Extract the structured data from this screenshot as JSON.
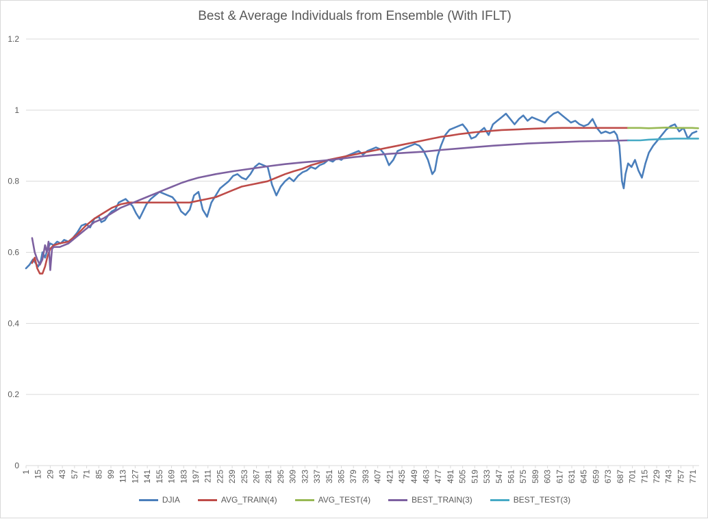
{
  "chart_data": {
    "type": "line",
    "title": "Best & Average Individuals from Ensemble (With IFLT)",
    "xlabel": "",
    "ylabel": "",
    "ylim": [
      0,
      1.2
    ],
    "yticks": [
      "0",
      "0.2",
      "0.4",
      "0.6",
      "0.8",
      "1",
      "1.2"
    ],
    "xlim": [
      1,
      778
    ],
    "xticks": [
      1,
      15,
      29,
      43,
      57,
      71,
      85,
      99,
      113,
      127,
      141,
      155,
      169,
      183,
      197,
      211,
      225,
      239,
      253,
      267,
      281,
      295,
      309,
      323,
      337,
      351,
      365,
      379,
      393,
      407,
      421,
      435,
      449,
      463,
      477,
      491,
      505,
      519,
      533,
      547,
      561,
      575,
      589,
      603,
      617,
      631,
      645,
      659,
      673,
      687,
      701,
      715,
      729,
      743,
      757,
      771
    ],
    "grid": "horizontal",
    "legend_position": "bottom",
    "series": [
      {
        "name": "DJIA",
        "color": "#4a7ebb",
        "points": [
          [
            1,
            0.555
          ],
          [
            5,
            0.565
          ],
          [
            9,
            0.58
          ],
          [
            12,
            0.57
          ],
          [
            15,
            0.56
          ],
          [
            18,
            0.575
          ],
          [
            20,
            0.6
          ],
          [
            23,
            0.585
          ],
          [
            26,
            0.61
          ],
          [
            29,
            0.625
          ],
          [
            33,
            0.62
          ],
          [
            37,
            0.63
          ],
          [
            41,
            0.625
          ],
          [
            45,
            0.635
          ],
          [
            50,
            0.63
          ],
          [
            55,
            0.64
          ],
          [
            60,
            0.655
          ],
          [
            65,
            0.675
          ],
          [
            70,
            0.68
          ],
          [
            75,
            0.67
          ],
          [
            80,
            0.695
          ],
          [
            85,
            0.7
          ],
          [
            88,
            0.685
          ],
          [
            92,
            0.69
          ],
          [
            96,
            0.705
          ],
          [
            100,
            0.715
          ],
          [
            104,
            0.72
          ],
          [
            108,
            0.74
          ],
          [
            112,
            0.745
          ],
          [
            116,
            0.75
          ],
          [
            120,
            0.74
          ],
          [
            124,
            0.73
          ],
          [
            128,
            0.71
          ],
          [
            132,
            0.695
          ],
          [
            136,
            0.715
          ],
          [
            140,
            0.735
          ],
          [
            145,
            0.75
          ],
          [
            150,
            0.76
          ],
          [
            155,
            0.77
          ],
          [
            160,
            0.765
          ],
          [
            165,
            0.76
          ],
          [
            170,
            0.755
          ],
          [
            175,
            0.74
          ],
          [
            180,
            0.715
          ],
          [
            185,
            0.705
          ],
          [
            190,
            0.72
          ],
          [
            195,
            0.76
          ],
          [
            200,
            0.77
          ],
          [
            205,
            0.72
          ],
          [
            210,
            0.7
          ],
          [
            215,
            0.74
          ],
          [
            220,
            0.76
          ],
          [
            225,
            0.78
          ],
          [
            230,
            0.79
          ],
          [
            235,
            0.8
          ],
          [
            240,
            0.815
          ],
          [
            245,
            0.82
          ],
          [
            250,
            0.81
          ],
          [
            255,
            0.805
          ],
          [
            260,
            0.82
          ],
          [
            265,
            0.84
          ],
          [
            270,
            0.85
          ],
          [
            275,
            0.845
          ],
          [
            280,
            0.84
          ],
          [
            285,
            0.79
          ],
          [
            290,
            0.76
          ],
          [
            295,
            0.785
          ],
          [
            300,
            0.8
          ],
          [
            305,
            0.81
          ],
          [
            310,
            0.8
          ],
          [
            315,
            0.815
          ],
          [
            320,
            0.825
          ],
          [
            325,
            0.83
          ],
          [
            330,
            0.84
          ],
          [
            335,
            0.835
          ],
          [
            340,
            0.845
          ],
          [
            345,
            0.85
          ],
          [
            350,
            0.86
          ],
          [
            355,
            0.855
          ],
          [
            360,
            0.865
          ],
          [
            365,
            0.86
          ],
          [
            370,
            0.87
          ],
          [
            375,
            0.875
          ],
          [
            380,
            0.88
          ],
          [
            385,
            0.885
          ],
          [
            390,
            0.875
          ],
          [
            395,
            0.885
          ],
          [
            400,
            0.89
          ],
          [
            405,
            0.895
          ],
          [
            410,
            0.89
          ],
          [
            415,
            0.875
          ],
          [
            420,
            0.845
          ],
          [
            425,
            0.86
          ],
          [
            430,
            0.885
          ],
          [
            435,
            0.89
          ],
          [
            440,
            0.895
          ],
          [
            445,
            0.9
          ],
          [
            450,
            0.905
          ],
          [
            455,
            0.9
          ],
          [
            460,
            0.885
          ],
          [
            465,
            0.86
          ],
          [
            470,
            0.82
          ],
          [
            473,
            0.83
          ],
          [
            476,
            0.87
          ],
          [
            480,
            0.9
          ],
          [
            485,
            0.93
          ],
          [
            490,
            0.945
          ],
          [
            495,
            0.95
          ],
          [
            500,
            0.955
          ],
          [
            505,
            0.96
          ],
          [
            510,
            0.945
          ],
          [
            515,
            0.92
          ],
          [
            520,
            0.925
          ],
          [
            525,
            0.94
          ],
          [
            530,
            0.95
          ],
          [
            535,
            0.93
          ],
          [
            540,
            0.96
          ],
          [
            545,
            0.97
          ],
          [
            550,
            0.98
          ],
          [
            555,
            0.99
          ],
          [
            560,
            0.975
          ],
          [
            565,
            0.96
          ],
          [
            570,
            0.975
          ],
          [
            575,
            0.985
          ],
          [
            580,
            0.97
          ],
          [
            585,
            0.98
          ],
          [
            590,
            0.975
          ],
          [
            595,
            0.97
          ],
          [
            600,
            0.965
          ],
          [
            605,
            0.98
          ],
          [
            610,
            0.99
          ],
          [
            615,
            0.995
          ],
          [
            620,
            0.985
          ],
          [
            625,
            0.975
          ],
          [
            630,
            0.965
          ],
          [
            635,
            0.97
          ],
          [
            640,
            0.96
          ],
          [
            645,
            0.955
          ],
          [
            650,
            0.96
          ],
          [
            655,
            0.975
          ],
          [
            660,
            0.95
          ],
          [
            665,
            0.935
          ],
          [
            670,
            0.94
          ],
          [
            675,
            0.935
          ],
          [
            680,
            0.94
          ],
          [
            683,
            0.93
          ],
          [
            686,
            0.9
          ],
          [
            689,
            0.8
          ],
          [
            691,
            0.78
          ],
          [
            693,
            0.82
          ],
          [
            696,
            0.85
          ],
          [
            700,
            0.84
          ],
          [
            704,
            0.86
          ],
          [
            708,
            0.83
          ],
          [
            712,
            0.81
          ],
          [
            716,
            0.85
          ],
          [
            720,
            0.88
          ],
          [
            725,
            0.9
          ],
          [
            730,
            0.915
          ],
          [
            735,
            0.93
          ],
          [
            740,
            0.945
          ],
          [
            745,
            0.955
          ],
          [
            750,
            0.96
          ],
          [
            755,
            0.94
          ],
          [
            760,
            0.95
          ],
          [
            765,
            0.92
          ],
          [
            770,
            0.935
          ],
          [
            775,
            0.94
          ]
        ]
      },
      {
        "name": "AVG_TRAIN(4)",
        "color": "#be4b48",
        "points": [
          [
            8,
            0.57
          ],
          [
            11,
            0.585
          ],
          [
            14,
            0.555
          ],
          [
            17,
            0.54
          ],
          [
            20,
            0.54
          ],
          [
            23,
            0.56
          ],
          [
            26,
            0.59
          ],
          [
            29,
            0.61
          ],
          [
            33,
            0.62
          ],
          [
            40,
            0.625
          ],
          [
            50,
            0.63
          ],
          [
            60,
            0.65
          ],
          [
            70,
            0.675
          ],
          [
            80,
            0.695
          ],
          [
            90,
            0.71
          ],
          [
            100,
            0.725
          ],
          [
            110,
            0.735
          ],
          [
            120,
            0.74
          ],
          [
            130,
            0.74
          ],
          [
            140,
            0.74
          ],
          [
            150,
            0.74
          ],
          [
            160,
            0.74
          ],
          [
            170,
            0.74
          ],
          [
            180,
            0.74
          ],
          [
            190,
            0.74
          ],
          [
            200,
            0.745
          ],
          [
            210,
            0.75
          ],
          [
            220,
            0.755
          ],
          [
            230,
            0.765
          ],
          [
            240,
            0.775
          ],
          [
            250,
            0.785
          ],
          [
            260,
            0.79
          ],
          [
            270,
            0.795
          ],
          [
            280,
            0.8
          ],
          [
            290,
            0.81
          ],
          [
            300,
            0.82
          ],
          [
            310,
            0.828
          ],
          [
            320,
            0.835
          ],
          [
            330,
            0.845
          ],
          [
            340,
            0.852
          ],
          [
            350,
            0.86
          ],
          [
            360,
            0.865
          ],
          [
            370,
            0.87
          ],
          [
            380,
            0.875
          ],
          [
            390,
            0.88
          ],
          [
            400,
            0.885
          ],
          [
            410,
            0.89
          ],
          [
            420,
            0.895
          ],
          [
            430,
            0.9
          ],
          [
            440,
            0.905
          ],
          [
            450,
            0.91
          ],
          [
            460,
            0.915
          ],
          [
            470,
            0.92
          ],
          [
            480,
            0.925
          ],
          [
            490,
            0.928
          ],
          [
            500,
            0.932
          ],
          [
            510,
            0.935
          ],
          [
            520,
            0.938
          ],
          [
            530,
            0.94
          ],
          [
            540,
            0.942
          ],
          [
            550,
            0.944
          ],
          [
            560,
            0.945
          ],
          [
            570,
            0.946
          ],
          [
            580,
            0.947
          ],
          [
            590,
            0.948
          ],
          [
            600,
            0.949
          ],
          [
            620,
            0.95
          ],
          [
            640,
            0.95
          ],
          [
            660,
            0.95
          ],
          [
            680,
            0.95
          ],
          [
            696,
            0.95
          ]
        ]
      },
      {
        "name": "AVG_TEST(4)",
        "color": "#98b954",
        "points": [
          [
            696,
            0.95
          ],
          [
            710,
            0.95
          ],
          [
            720,
            0.949
          ],
          [
            730,
            0.95
          ],
          [
            740,
            0.951
          ],
          [
            750,
            0.95
          ],
          [
            760,
            0.95
          ],
          [
            770,
            0.95
          ],
          [
            777,
            0.949
          ]
        ]
      },
      {
        "name": "BEST_TRAIN(3)",
        "color": "#7d60a0",
        "points": [
          [
            8,
            0.64
          ],
          [
            11,
            0.6
          ],
          [
            14,
            0.58
          ],
          [
            17,
            0.565
          ],
          [
            20,
            0.58
          ],
          [
            23,
            0.62
          ],
          [
            25,
            0.6
          ],
          [
            27,
            0.63
          ],
          [
            29,
            0.55
          ],
          [
            31,
            0.61
          ],
          [
            33,
            0.615
          ],
          [
            40,
            0.615
          ],
          [
            50,
            0.625
          ],
          [
            60,
            0.645
          ],
          [
            70,
            0.665
          ],
          [
            80,
            0.685
          ],
          [
            90,
            0.695
          ],
          [
            100,
            0.71
          ],
          [
            110,
            0.725
          ],
          [
            120,
            0.735
          ],
          [
            130,
            0.745
          ],
          [
            140,
            0.755
          ],
          [
            150,
            0.765
          ],
          [
            160,
            0.775
          ],
          [
            170,
            0.785
          ],
          [
            180,
            0.795
          ],
          [
            190,
            0.803
          ],
          [
            200,
            0.81
          ],
          [
            220,
            0.82
          ],
          [
            240,
            0.828
          ],
          [
            260,
            0.835
          ],
          [
            280,
            0.842
          ],
          [
            300,
            0.848
          ],
          [
            320,
            0.853
          ],
          [
            340,
            0.857
          ],
          [
            360,
            0.862
          ],
          [
            380,
            0.868
          ],
          [
            400,
            0.873
          ],
          [
            420,
            0.877
          ],
          [
            440,
            0.88
          ],
          [
            460,
            0.883
          ],
          [
            480,
            0.888
          ],
          [
            500,
            0.892
          ],
          [
            520,
            0.896
          ],
          [
            540,
            0.9
          ],
          [
            560,
            0.903
          ],
          [
            580,
            0.906
          ],
          [
            600,
            0.908
          ],
          [
            620,
            0.91
          ],
          [
            640,
            0.912
          ],
          [
            660,
            0.913
          ],
          [
            680,
            0.914
          ],
          [
            696,
            0.915
          ]
        ]
      },
      {
        "name": "BEST_TEST(3)",
        "color": "#46aac5",
        "points": [
          [
            696,
            0.915
          ],
          [
            710,
            0.915
          ],
          [
            720,
            0.917
          ],
          [
            730,
            0.918
          ],
          [
            740,
            0.919
          ],
          [
            750,
            0.92
          ],
          [
            760,
            0.92
          ],
          [
            770,
            0.92
          ],
          [
            777,
            0.92
          ]
        ]
      }
    ]
  }
}
